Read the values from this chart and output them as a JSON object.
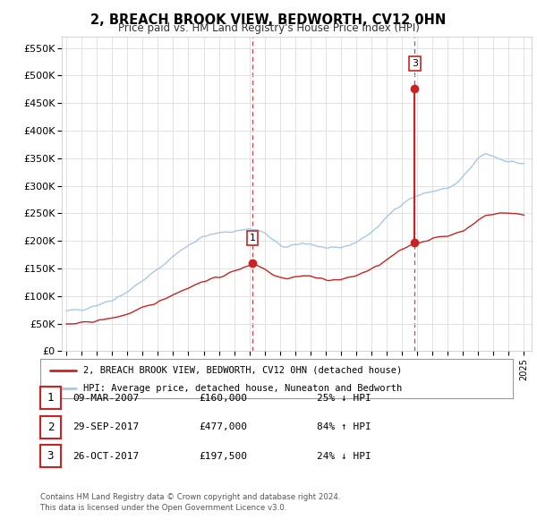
{
  "title": "2, BREACH BROOK VIEW, BEDWORTH, CV12 0HN",
  "subtitle": "Price paid vs. HM Land Registry's House Price Index (HPI)",
  "xlim": [
    1994.7,
    2025.5
  ],
  "ylim": [
    0,
    570000
  ],
  "yticks": [
    0,
    50000,
    100000,
    150000,
    200000,
    250000,
    300000,
    350000,
    400000,
    450000,
    500000,
    550000
  ],
  "ytick_labels": [
    "£0",
    "£50K",
    "£100K",
    "£150K",
    "£200K",
    "£250K",
    "£300K",
    "£350K",
    "£400K",
    "£450K",
    "£500K",
    "£550K"
  ],
  "xtick_years": [
    1995,
    1996,
    1997,
    1998,
    1999,
    2000,
    2001,
    2002,
    2003,
    2004,
    2005,
    2006,
    2007,
    2008,
    2009,
    2010,
    2011,
    2012,
    2013,
    2014,
    2015,
    2016,
    2017,
    2018,
    2019,
    2020,
    2021,
    2022,
    2023,
    2024,
    2025
  ],
  "hpi_color": "#a8c8e8",
  "price_color": "#cc2222",
  "sale1_x": 2007.19,
  "sale1_y": 160000,
  "sale2_x": 2017.75,
  "sale2_y": 477000,
  "sale3_x": 2017.83,
  "sale3_y": 197500,
  "legend_line1": "2, BREACH BROOK VIEW, BEDWORTH, CV12 0HN (detached house)",
  "legend_line2": "HPI: Average price, detached house, Nuneaton and Bedworth",
  "table_entries": [
    {
      "num": "1",
      "date": "09-MAR-2007",
      "price": "£160,000",
      "pct": "25% ↓ HPI"
    },
    {
      "num": "2",
      "date": "29-SEP-2017",
      "price": "£477,000",
      "pct": "84% ↑ HPI"
    },
    {
      "num": "3",
      "date": "26-OCT-2017",
      "price": "£197,500",
      "pct": "24% ↓ HPI"
    }
  ],
  "footer_line1": "Contains HM Land Registry data © Crown copyright and database right 2024.",
  "footer_line2": "This data is licensed under the Open Government Licence v3.0.",
  "hpi_anchors": [
    [
      1995.0,
      72000
    ],
    [
      1996.0,
      76000
    ],
    [
      1997.0,
      84000
    ],
    [
      1998.0,
      93000
    ],
    [
      1999.0,
      108000
    ],
    [
      2000.0,
      128000
    ],
    [
      2001.0,
      148000
    ],
    [
      2002.0,
      172000
    ],
    [
      2003.0,
      193000
    ],
    [
      2004.0,
      208000
    ],
    [
      2005.0,
      214000
    ],
    [
      2006.0,
      218000
    ],
    [
      2007.0,
      222000
    ],
    [
      2007.5,
      220000
    ],
    [
      2008.0,
      214000
    ],
    [
      2008.5,
      202000
    ],
    [
      2009.0,
      192000
    ],
    [
      2009.5,
      188000
    ],
    [
      2010.0,
      192000
    ],
    [
      2010.5,
      196000
    ],
    [
      2011.0,
      195000
    ],
    [
      2011.5,
      190000
    ],
    [
      2012.0,
      187000
    ],
    [
      2012.5,
      185000
    ],
    [
      2013.0,
      188000
    ],
    [
      2013.5,
      192000
    ],
    [
      2014.0,
      198000
    ],
    [
      2014.5,
      206000
    ],
    [
      2015.0,
      216000
    ],
    [
      2015.5,
      228000
    ],
    [
      2016.0,
      242000
    ],
    [
      2016.5,
      257000
    ],
    [
      2017.0,
      268000
    ],
    [
      2017.5,
      276000
    ],
    [
      2018.0,
      282000
    ],
    [
      2018.5,
      286000
    ],
    [
      2019.0,
      290000
    ],
    [
      2019.5,
      293000
    ],
    [
      2020.0,
      295000
    ],
    [
      2020.5,
      302000
    ],
    [
      2021.0,
      315000
    ],
    [
      2021.5,
      332000
    ],
    [
      2022.0,
      350000
    ],
    [
      2022.5,
      358000
    ],
    [
      2023.0,
      354000
    ],
    [
      2023.5,
      348000
    ],
    [
      2024.0,
      345000
    ],
    [
      2024.5,
      342000
    ],
    [
      2025.0,
      340000
    ]
  ],
  "price_anchors": [
    [
      1995.0,
      48000
    ],
    [
      1996.0,
      51000
    ],
    [
      1997.0,
      55000
    ],
    [
      1998.0,
      60000
    ],
    [
      1999.0,
      67000
    ],
    [
      2000.0,
      78000
    ],
    [
      2001.0,
      89000
    ],
    [
      2002.0,
      103000
    ],
    [
      2003.0,
      115000
    ],
    [
      2004.0,
      127000
    ],
    [
      2005.0,
      134000
    ],
    [
      2006.0,
      145000
    ],
    [
      2007.1,
      157000
    ],
    [
      2007.19,
      160000
    ],
    [
      2007.5,
      156000
    ],
    [
      2008.0,
      149000
    ],
    [
      2008.5,
      140000
    ],
    [
      2009.0,
      135000
    ],
    [
      2009.5,
      132000
    ],
    [
      2010.0,
      135000
    ],
    [
      2010.5,
      137000
    ],
    [
      2011.0,
      136000
    ],
    [
      2011.5,
      132000
    ],
    [
      2012.0,
      130000
    ],
    [
      2012.5,
      129000
    ],
    [
      2013.0,
      130000
    ],
    [
      2013.5,
      133000
    ],
    [
      2014.0,
      137000
    ],
    [
      2014.5,
      143000
    ],
    [
      2015.0,
      149000
    ],
    [
      2015.5,
      156000
    ],
    [
      2016.0,
      165000
    ],
    [
      2016.5,
      175000
    ],
    [
      2017.0,
      184000
    ],
    [
      2017.6,
      193000
    ],
    [
      2017.83,
      197500
    ],
    [
      2018.0,
      196000
    ],
    [
      2018.5,
      200000
    ],
    [
      2019.0,
      204000
    ],
    [
      2019.5,
      207000
    ],
    [
      2020.0,
      209000
    ],
    [
      2020.5,
      214000
    ],
    [
      2021.0,
      219000
    ],
    [
      2021.5,
      226000
    ],
    [
      2022.0,
      238000
    ],
    [
      2022.5,
      246000
    ],
    [
      2023.0,
      248000
    ],
    [
      2023.5,
      252000
    ],
    [
      2024.0,
      250000
    ],
    [
      2024.5,
      249000
    ],
    [
      2025.0,
      248000
    ]
  ]
}
